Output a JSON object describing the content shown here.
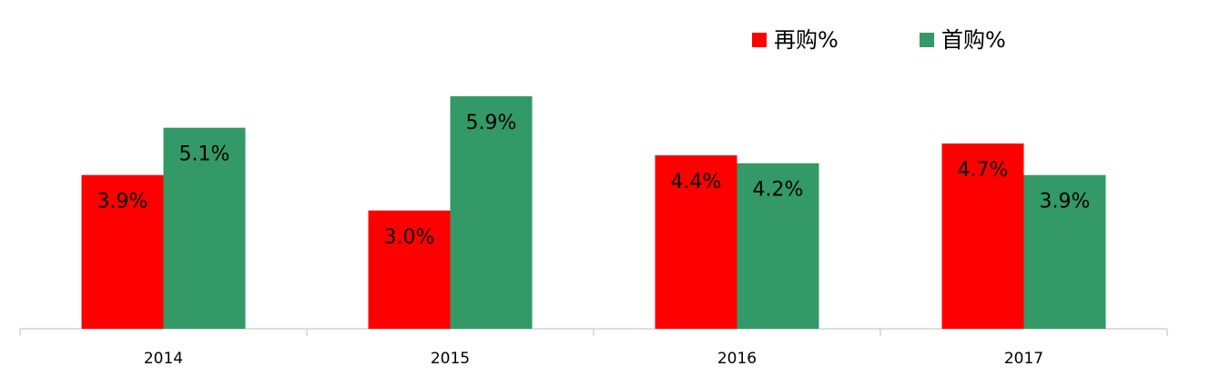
{
  "chart_data": {
    "type": "bar",
    "categories": [
      "2014",
      "2015",
      "2016",
      "2017"
    ],
    "series": [
      {
        "name": "再购%",
        "color": "#ff0000",
        "values": [
          3.9,
          3.0,
          4.4,
          4.7
        ],
        "value_labels": [
          "3.9%",
          "3.0%",
          "4.4%",
          "4.7%"
        ]
      },
      {
        "name": "首购%",
        "color": "#339966",
        "values": [
          5.1,
          5.9,
          4.2,
          3.9
        ],
        "value_labels": [
          "5.1%",
          "5.9%",
          "4.2%",
          "3.9%"
        ]
      }
    ],
    "legend": "top-right"
  }
}
